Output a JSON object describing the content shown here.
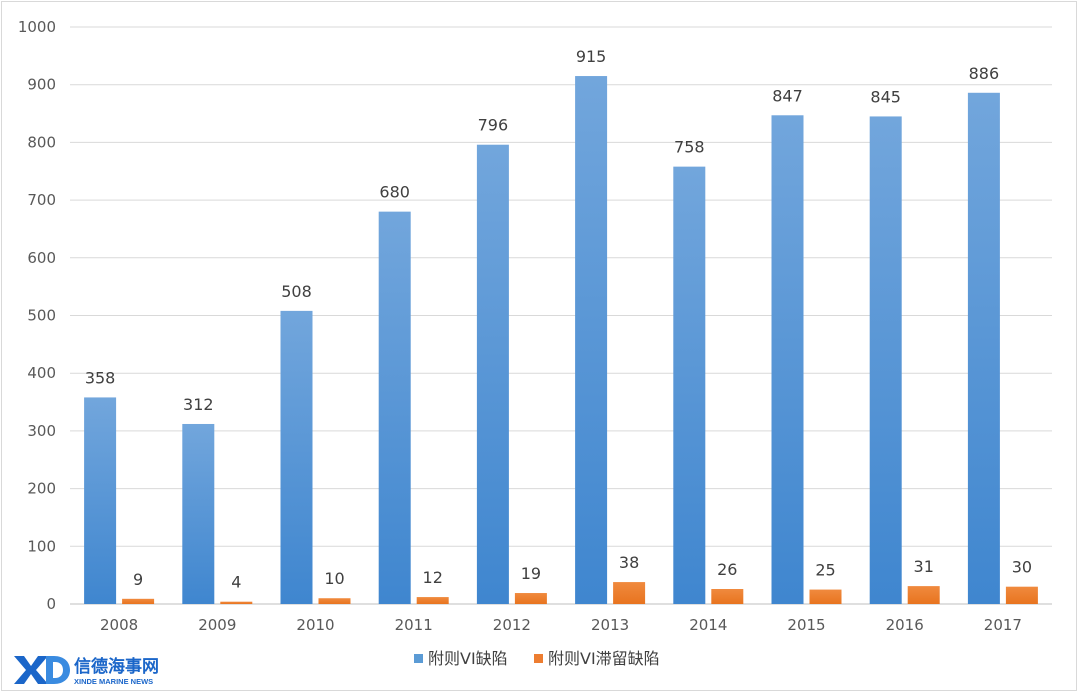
{
  "chart_data": {
    "type": "bar",
    "categories": [
      "2008",
      "2009",
      "2010",
      "2011",
      "2012",
      "2013",
      "2014",
      "2015",
      "2016",
      "2017"
    ],
    "series": [
      {
        "name": "附则VI缺陷",
        "values": [
          358,
          312,
          508,
          680,
          796,
          915,
          758,
          847,
          845,
          886
        ],
        "color": "#5b9bd5"
      },
      {
        "name": "附则VI滞留缺陷",
        "values": [
          9,
          4,
          10,
          12,
          19,
          38,
          26,
          25,
          31,
          30
        ],
        "color": "#ed7d31"
      }
    ],
    "yticks": [
      "0",
      "100",
      "200",
      "300",
      "400",
      "500",
      "600",
      "700",
      "800",
      "900",
      "1000"
    ],
    "ylim": [
      0,
      1000
    ],
    "grid": true,
    "legend_position": "bottom"
  },
  "watermark": {
    "chinese": "信德海事网",
    "english": "XINDE MARINE NEWS"
  }
}
